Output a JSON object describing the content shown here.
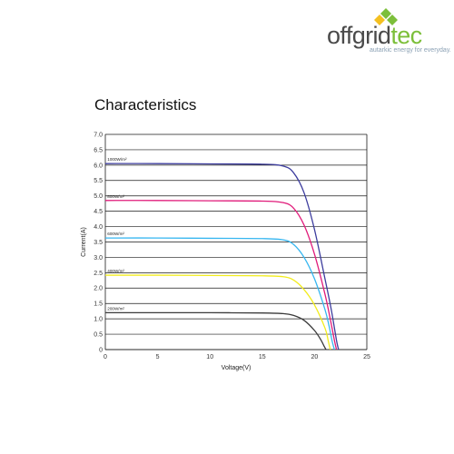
{
  "brand": {
    "name_main": "offgrid",
    "name_accent": "tec",
    "tagline": "autarkic energy for everyday.",
    "logo_icon": "leaf-cluster-icon",
    "colors": {
      "green": "#7cbf3a",
      "yellow": "#f4c020",
      "dark": "#4a4a4a"
    }
  },
  "page": {
    "heading": "Characteristics"
  },
  "chart_data": {
    "type": "line",
    "title": "",
    "xlabel": "Voltage(V)",
    "ylabel": "Current(A)",
    "xlim": [
      0,
      25
    ],
    "ylim": [
      0,
      7
    ],
    "xticks": [
      "0",
      "5",
      "10",
      "15",
      "20",
      "25"
    ],
    "yticks": [
      "0",
      "0.5",
      "1.0",
      "1.5",
      "2.0",
      "2.5",
      "3.0",
      "3.5",
      "4.0",
      "4.5",
      "5.0",
      "5.5",
      "6.0",
      "6.5",
      "7.0"
    ],
    "grid": "horizontal",
    "series": [
      {
        "name": "1000W/m²",
        "color": "#3d3d9e",
        "x": [
          0,
          5,
          10,
          15,
          17,
          18,
          19,
          20,
          21,
          21.6,
          22.1,
          22.3
        ],
        "y": [
          6.05,
          6.05,
          6.04,
          6.03,
          5.97,
          5.75,
          5.1,
          3.9,
          2.3,
          1.3,
          0.3,
          0
        ]
      },
      {
        "name": "800W/m²",
        "color": "#e01b7a",
        "x": [
          0,
          5,
          10,
          15,
          17,
          18,
          19,
          20,
          21,
          21.5,
          21.9,
          22.1
        ],
        "y": [
          4.85,
          4.85,
          4.84,
          4.83,
          4.78,
          4.6,
          4.05,
          3.1,
          1.8,
          1.0,
          0.3,
          0
        ]
      },
      {
        "name": "600W/m²",
        "color": "#36b6f0",
        "x": [
          0,
          5,
          10,
          15,
          17,
          18,
          19,
          20,
          21,
          21.4,
          21.7,
          21.9
        ],
        "y": [
          3.63,
          3.63,
          3.62,
          3.61,
          3.57,
          3.42,
          3.0,
          2.3,
          1.3,
          0.75,
          0.25,
          0
        ]
      },
      {
        "name": "400W/m²",
        "color": "#f2ec1c",
        "x": [
          0,
          5,
          10,
          15,
          17,
          18,
          19,
          20,
          21,
          21.3,
          21.5
        ],
        "y": [
          2.42,
          2.42,
          2.41,
          2.4,
          2.37,
          2.26,
          1.95,
          1.45,
          0.7,
          0.3,
          0
        ]
      },
      {
        "name": "200W/m²",
        "color": "#3a3a3a",
        "x": [
          0,
          5,
          10,
          15,
          17,
          18,
          19,
          20,
          20.6,
          20.9,
          21.1
        ],
        "y": [
          1.2,
          1.2,
          1.2,
          1.19,
          1.17,
          1.11,
          0.95,
          0.62,
          0.32,
          0.12,
          0
        ]
      }
    ]
  }
}
